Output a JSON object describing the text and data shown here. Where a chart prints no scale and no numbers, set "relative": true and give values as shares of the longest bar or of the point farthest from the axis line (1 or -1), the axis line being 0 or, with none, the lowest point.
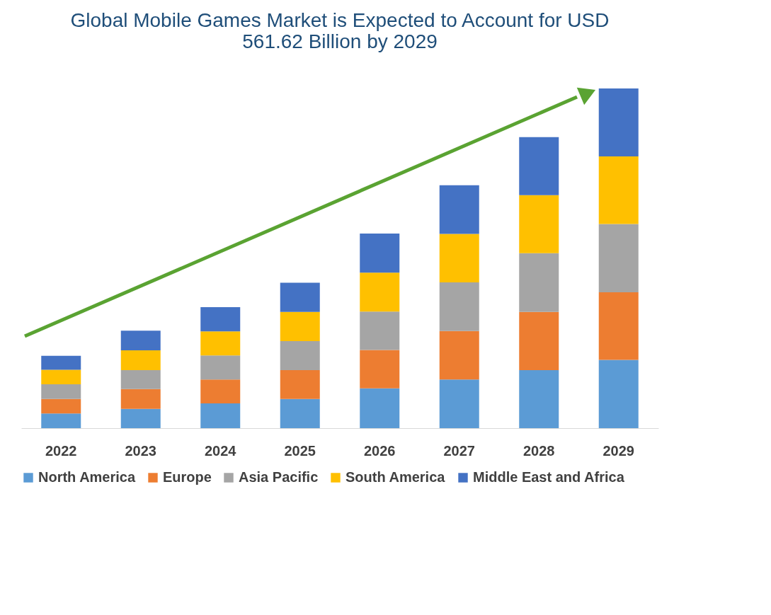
{
  "chart_data": {
    "type": "bar",
    "title": "Global Mobile Games Market is Expected to Account for USD 561.62 Billion by 2029",
    "categories": [
      "2022",
      "2023",
      "2024",
      "2025",
      "2026",
      "2027",
      "2028",
      "2029"
    ],
    "stacked": true,
    "relative": true,
    "legend": "bottom",
    "grid": false,
    "series": [
      {
        "name": "North America",
        "color": "#5b9bd5",
        "values": [
          0.043,
          0.057,
          0.073,
          0.086,
          0.117,
          0.143,
          0.171,
          0.201
        ]
      },
      {
        "name": "Europe",
        "color": "#ed7d31",
        "values": [
          0.043,
          0.058,
          0.07,
          0.085,
          0.113,
          0.143,
          0.171,
          0.199
        ]
      },
      {
        "name": "Asia Pacific",
        "color": "#a5a5a5",
        "values": [
          0.043,
          0.056,
          0.071,
          0.085,
          0.113,
          0.143,
          0.173,
          0.201
        ]
      },
      {
        "name": "South America",
        "color": "#ffc000",
        "values": [
          0.043,
          0.058,
          0.071,
          0.086,
          0.115,
          0.143,
          0.171,
          0.199
        ]
      },
      {
        "name": "Middle East and Africa",
        "color": "#4472c4",
        "values": [
          0.041,
          0.058,
          0.071,
          0.086,
          0.115,
          0.143,
          0.171,
          0.2
        ]
      }
    ]
  }
}
